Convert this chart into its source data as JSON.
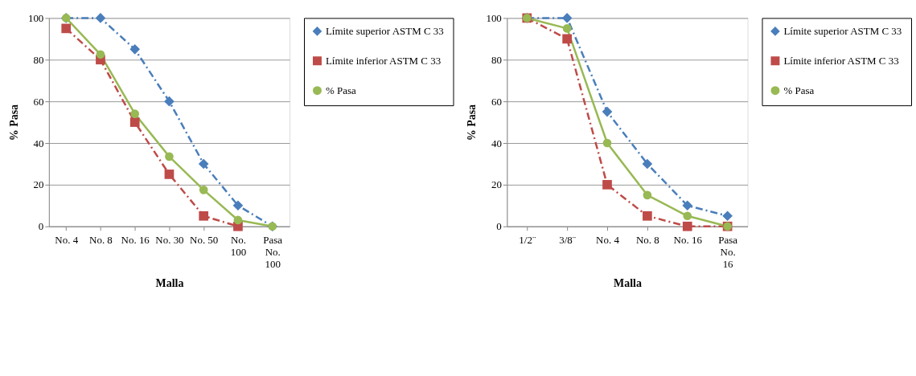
{
  "chart_data": [
    {
      "type": "line",
      "xlabel": "Malla",
      "ylabel": "% Pasa",
      "categories": [
        "No. 4",
        "No. 8",
        "No. 16",
        "No. 30",
        "No. 50",
        "No. 100",
        "Pasa No. 100"
      ],
      "ylim": [
        0,
        100
      ],
      "yticks": [
        0,
        20,
        40,
        60,
        80,
        100
      ],
      "grid": "y",
      "legend": "top right",
      "series": [
        {
          "name": "Límite superior ASTM C 33",
          "color": "#4a7ebb",
          "marker": "diamond",
          "line_style": "dashed",
          "values": [
            100,
            100,
            85,
            60,
            30,
            10,
            0
          ]
        },
        {
          "name": "Límite inferior ASTM C 33",
          "color": "#be4b48",
          "marker": "square",
          "line_style": "dashed",
          "values": [
            95,
            80,
            50,
            25,
            5,
            0,
            null
          ]
        },
        {
          "name": "% Pasa",
          "color": "#98b954",
          "marker": "circle",
          "line_style": "solid",
          "values": [
            100,
            82.5,
            54,
            33.5,
            17.5,
            3,
            0
          ]
        }
      ]
    },
    {
      "type": "line",
      "xlabel": "Malla",
      "ylabel": "% Pasa",
      "categories": [
        "1/2¨",
        "3/8¨",
        "No. 4",
        "No. 8",
        "No. 16",
        "Pasa No. 16"
      ],
      "ylim": [
        0,
        100
      ],
      "yticks": [
        0,
        20,
        40,
        60,
        80,
        100
      ],
      "grid": "y",
      "legend": "top right",
      "series": [
        {
          "name": "Límite superior ASTM C 33",
          "color": "#4a7ebb",
          "marker": "diamond",
          "line_style": "dashed",
          "values": [
            100,
            100,
            55,
            30,
            10,
            5
          ]
        },
        {
          "name": "Límite inferior ASTM C 33",
          "color": "#be4b48",
          "marker": "square",
          "line_style": "dashed",
          "values": [
            100,
            90,
            20,
            5,
            0,
            0
          ]
        },
        {
          "name": "% Pasa",
          "color": "#98b954",
          "marker": "circle",
          "line_style": "solid",
          "values": [
            100,
            95,
            40,
            15,
            5,
            0
          ]
        }
      ]
    }
  ]
}
